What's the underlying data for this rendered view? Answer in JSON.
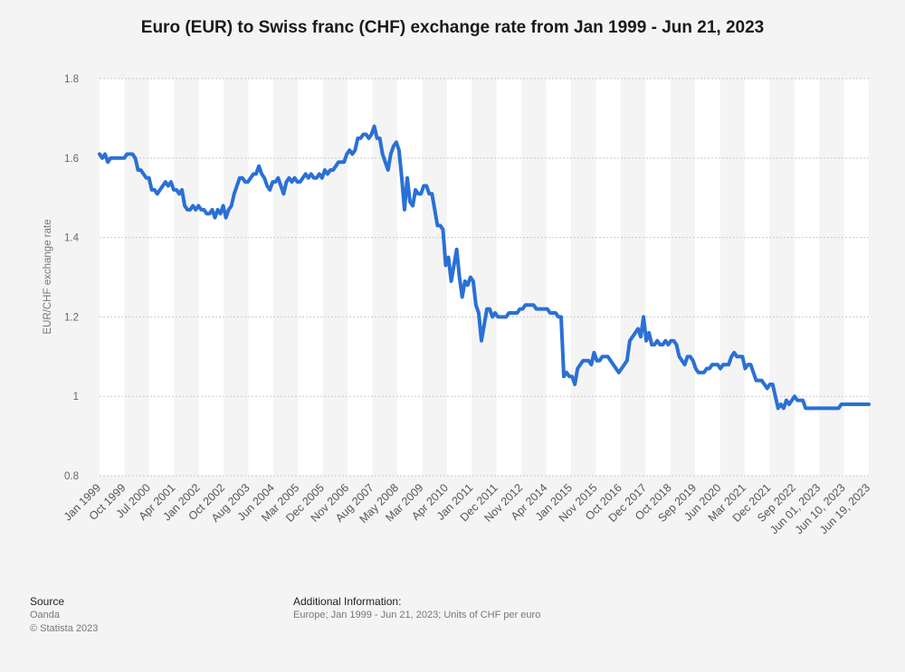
{
  "page": {
    "title": "Euro (EUR) to Swiss franc (CHF) exchange rate from Jan 1999 - Jun 21, 2023"
  },
  "footer": {
    "source_heading": "Source",
    "source_name": "Oanda",
    "copyright": "© Statista 2023",
    "info_heading": "Additional Information:",
    "info_text": "Europe; Jan 1999 - Jun 21, 2023; Units of CHF per euro"
  },
  "colors": {
    "line": "#2a70d6",
    "background": "#f4f4f4",
    "band": "#ffffff",
    "grid": "#c8c8c8"
  },
  "chart_data": {
    "type": "line",
    "title": "Euro (EUR) to Swiss franc (CHF) exchange rate from Jan 1999 - Jun 21, 2023",
    "ylabel": "EUR/CHF exchange rate",
    "xlabel": "",
    "ylim": [
      0.8,
      1.8
    ],
    "yticks": [
      0.8,
      1,
      1.2,
      1.4,
      1.6,
      1.8
    ],
    "ytick_labels": [
      "0.8",
      "1",
      "1.2",
      "1.4",
      "1.6",
      "1.8"
    ],
    "grid": true,
    "legend": "none",
    "xtick_labels": [
      "Jan 1999",
      "Oct 1999",
      "Jul 2000",
      "Apr 2001",
      "Jan 2002",
      "Oct 2002",
      "Aug 2003",
      "Jun 2004",
      "Mar 2005",
      "Dec 2005",
      "Nov 2006",
      "Aug 2007",
      "May 2008",
      "Mar 2009",
      "Apr 2010",
      "Jan 2011",
      "Dec 2011",
      "Nov 2012",
      "Apr 2014",
      "Jan 2015",
      "Nov 2015",
      "Oct 2016",
      "Dec 2017",
      "Oct 2018",
      "Sep 2019",
      "Jun 2020",
      "Mar 2021",
      "Dec 2021",
      "Sep 2022",
      "Jun 01, 2023",
      "Jun 10, 2023",
      "Jun 19, 2023"
    ],
    "series": [
      {
        "values": [
          1.61,
          1.6,
          1.61,
          1.59,
          1.6,
          1.6,
          1.6,
          1.6,
          1.6,
          1.6,
          1.61,
          1.61,
          1.61,
          1.6,
          1.57,
          1.57,
          1.56,
          1.55,
          1.55,
          1.52,
          1.52,
          1.51,
          1.52,
          1.53,
          1.54,
          1.53,
          1.54,
          1.52,
          1.52,
          1.51,
          1.52,
          1.48,
          1.47,
          1.47,
          1.48,
          1.47,
          1.48,
          1.47,
          1.47,
          1.46,
          1.46,
          1.47,
          1.45,
          1.47,
          1.46,
          1.48,
          1.45,
          1.47,
          1.48,
          1.51,
          1.53,
          1.55,
          1.55,
          1.54,
          1.54,
          1.55,
          1.56,
          1.56,
          1.58,
          1.56,
          1.55,
          1.53,
          1.52,
          1.54,
          1.54,
          1.55,
          1.53,
          1.51,
          1.54,
          1.55,
          1.54,
          1.55,
          1.54,
          1.54,
          1.55,
          1.56,
          1.55,
          1.56,
          1.55,
          1.55,
          1.56,
          1.55,
          1.57,
          1.56,
          1.57,
          1.57,
          1.58,
          1.59,
          1.59,
          1.59,
          1.61,
          1.62,
          1.61,
          1.62,
          1.65,
          1.65,
          1.66,
          1.66,
          1.65,
          1.66,
          1.68,
          1.65,
          1.65,
          1.61,
          1.59,
          1.57,
          1.61,
          1.63,
          1.64,
          1.62,
          1.55,
          1.47,
          1.55,
          1.49,
          1.48,
          1.52,
          1.51,
          1.51,
          1.53,
          1.53,
          1.51,
          1.51,
          1.47,
          1.43,
          1.43,
          1.42,
          1.33,
          1.35,
          1.29,
          1.33,
          1.37,
          1.3,
          1.25,
          1.29,
          1.28,
          1.3,
          1.29,
          1.23,
          1.21,
          1.14,
          1.18,
          1.22,
          1.22,
          1.2,
          1.21,
          1.2,
          1.2,
          1.2,
          1.2,
          1.21,
          1.21,
          1.21,
          1.21,
          1.22,
          1.22,
          1.23,
          1.23,
          1.23,
          1.23,
          1.22,
          1.22,
          1.22,
          1.22,
          1.22,
          1.21,
          1.21,
          1.21,
          1.2,
          1.2,
          1.05,
          1.06,
          1.05,
          1.05,
          1.03,
          1.07,
          1.08,
          1.09,
          1.09,
          1.09,
          1.08,
          1.11,
          1.09,
          1.09,
          1.1,
          1.1,
          1.1,
          1.09,
          1.08,
          1.07,
          1.06,
          1.07,
          1.08,
          1.09,
          1.14,
          1.15,
          1.16,
          1.17,
          1.15,
          1.2,
          1.14,
          1.16,
          1.13,
          1.13,
          1.14,
          1.13,
          1.13,
          1.14,
          1.13,
          1.14,
          1.14,
          1.13,
          1.1,
          1.09,
          1.08,
          1.1,
          1.1,
          1.09,
          1.07,
          1.06,
          1.06,
          1.06,
          1.07,
          1.07,
          1.08,
          1.08,
          1.08,
          1.07,
          1.08,
          1.08,
          1.08,
          1.1,
          1.11,
          1.1,
          1.1,
          1.1,
          1.07,
          1.08,
          1.08,
          1.06,
          1.04,
          1.04,
          1.04,
          1.03,
          1.02,
          1.03,
          1.03,
          1.0,
          0.97,
          0.98,
          0.97,
          0.99,
          0.98,
          0.99,
          1.0,
          0.99,
          0.99,
          0.99,
          0.97,
          0.97,
          0.97,
          0.97,
          0.97,
          0.97,
          0.97,
          0.97,
          0.97,
          0.97,
          0.97,
          0.97,
          0.97,
          0.98,
          0.98,
          0.98,
          0.98,
          0.98,
          0.98,
          0.98,
          0.98,
          0.98,
          0.98,
          0.98
        ]
      }
    ]
  }
}
